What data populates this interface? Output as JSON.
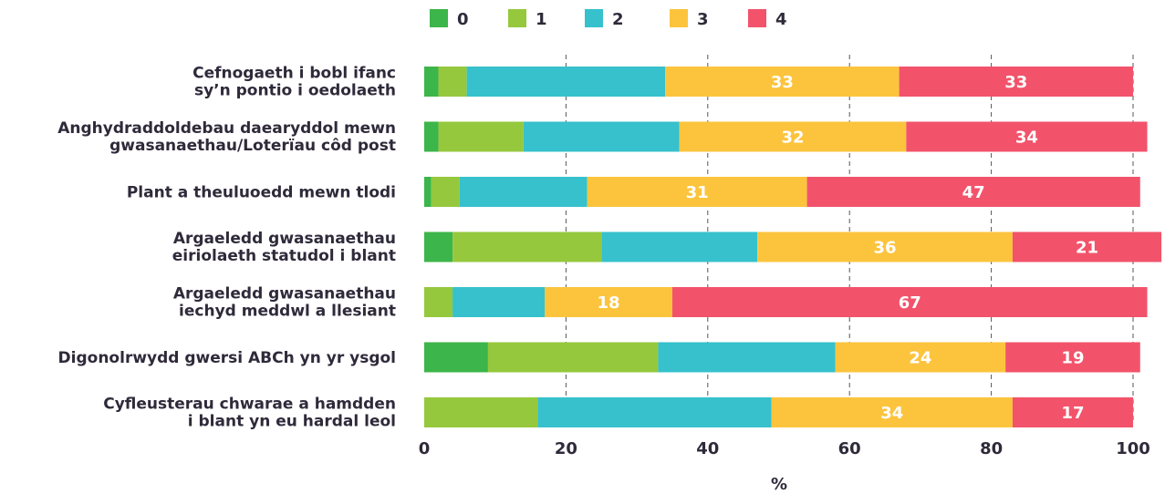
{
  "chart_data": {
    "type": "bar",
    "orientation": "horizontal",
    "stacked": true,
    "categories": [
      [
        "Cefnogaeth i bobl ifanc",
        "sy’n pontio i oedolaeth"
      ],
      [
        "Anghydraddoldebau daearyddol mewn",
        "gwasanaethau/Loterïau côd post"
      ],
      [
        "Plant a theuluoedd mewn tlodi"
      ],
      [
        "Argaeledd gwasanaethau",
        "eiriolaeth statudol i blant"
      ],
      [
        "Argaeledd gwasanaethau",
        "iechyd meddwl a llesiant"
      ],
      [
        "Digonolrwydd gwersi ABCh yn yr ysgol"
      ],
      [
        "Cyfleusterau chwarae a hamdden",
        "i blant yn eu hardal leol"
      ]
    ],
    "series": [
      {
        "name": "0",
        "color": "#3cb54a",
        "values": [
          2,
          2,
          1,
          4,
          0,
          9,
          0
        ]
      },
      {
        "name": "1",
        "color": "#95c83d",
        "values": [
          4,
          12,
          4,
          21,
          4,
          24,
          16
        ]
      },
      {
        "name": "2",
        "color": "#36c1cc",
        "values": [
          28,
          22,
          18,
          22,
          13,
          25,
          33
        ]
      },
      {
        "name": "3",
        "color": "#fcc43d",
        "values": [
          33,
          32,
          31,
          36,
          18,
          24,
          34
        ]
      },
      {
        "name": "4",
        "color": "#f2536b",
        "values": [
          33,
          34,
          47,
          21,
          67,
          19,
          17
        ]
      }
    ],
    "data_labels": {
      "3": [
        "33",
        "32",
        "31",
        "36",
        "18",
        "24",
        "34"
      ],
      "4": [
        "33",
        "34",
        "47",
        "21",
        "67",
        "19",
        "17"
      ]
    },
    "xlabel": "%",
    "xlim": [
      0,
      100
    ],
    "xticks": [
      "0",
      "20",
      "40",
      "60",
      "80",
      "100"
    ],
    "grid": true,
    "legend_position": "top"
  }
}
